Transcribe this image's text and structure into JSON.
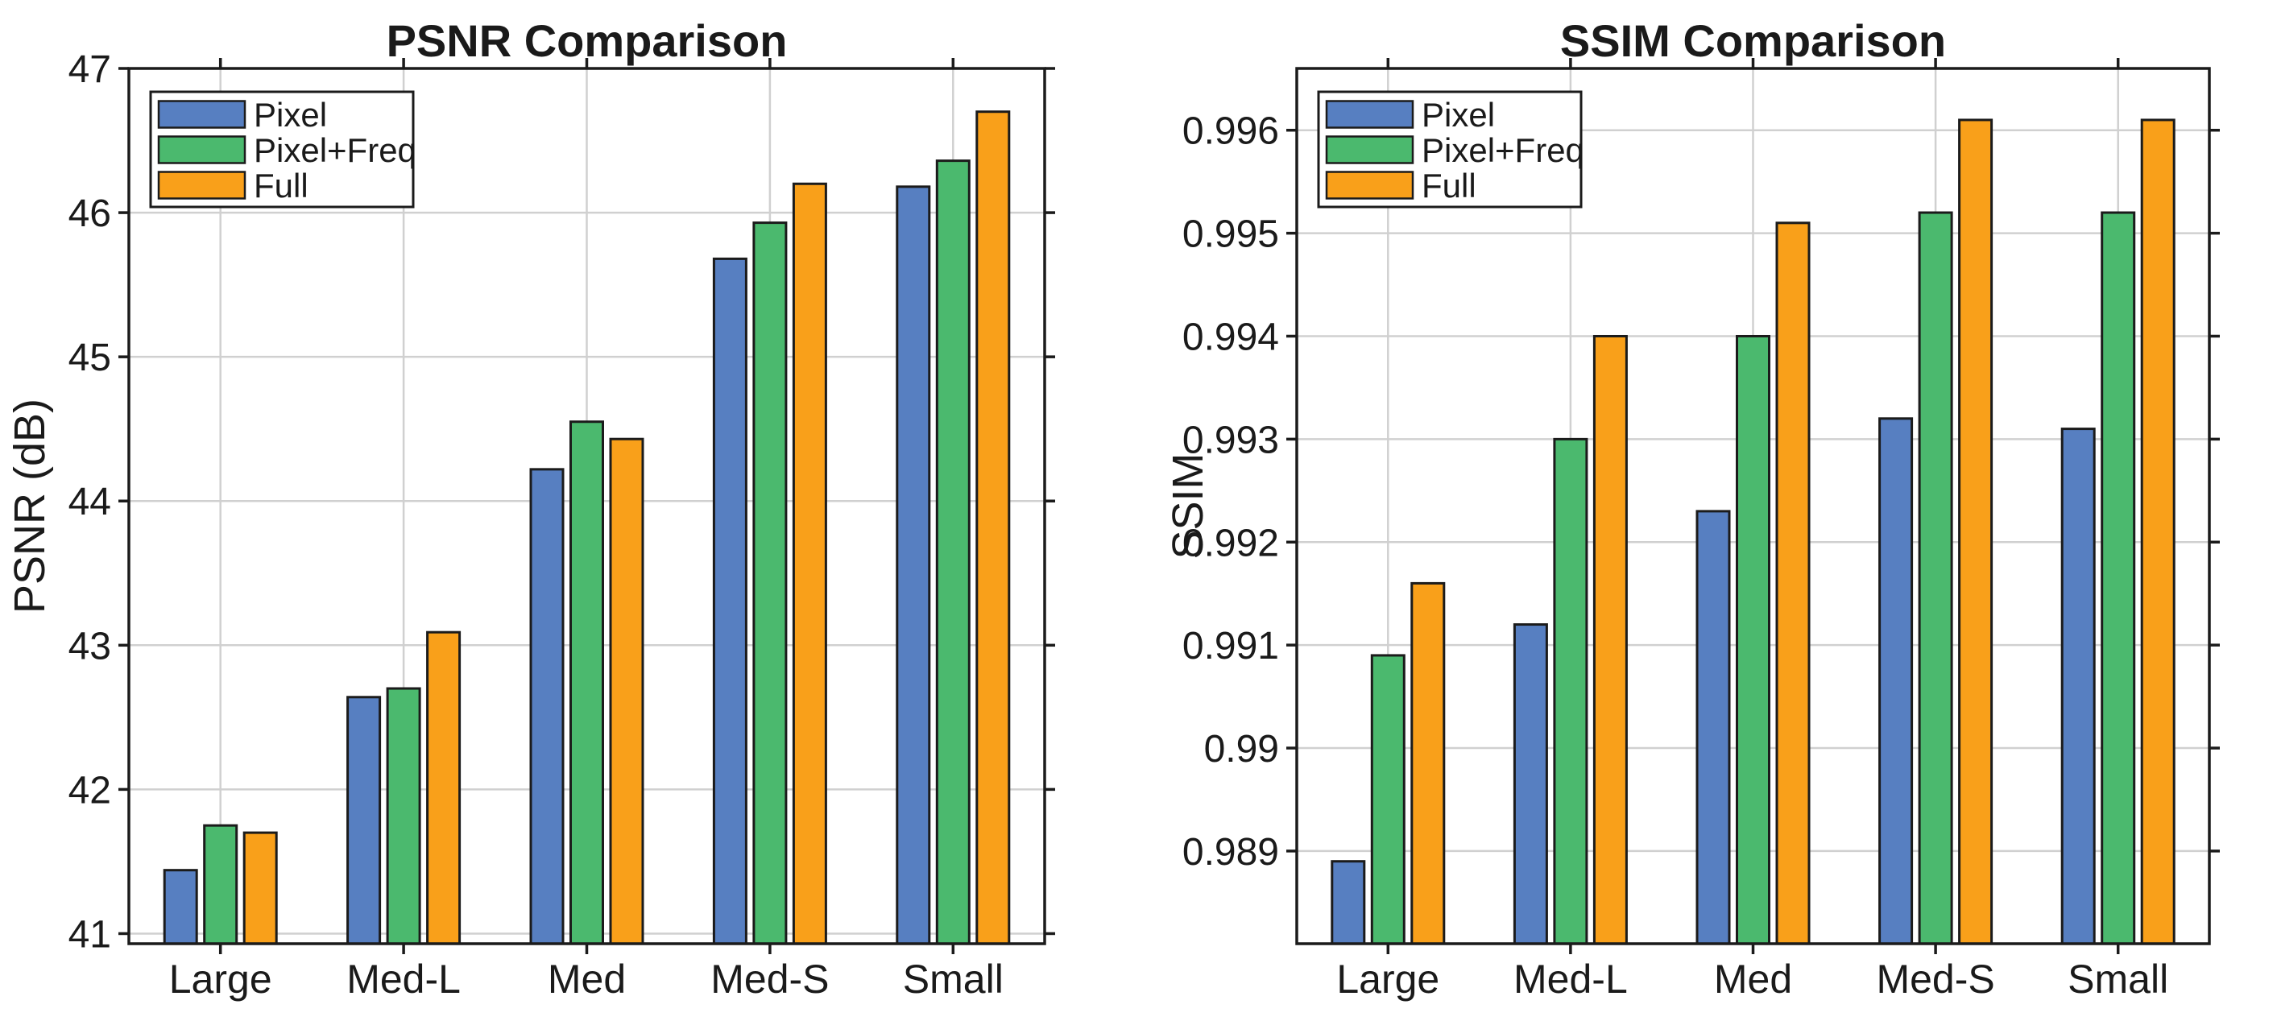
{
  "figure": {
    "background": "#ffffff",
    "grid_color": "#d0d0d0",
    "axis_color": "#1b1b1b",
    "text_color": "#1a1a1a"
  },
  "chart_data": [
    {
      "type": "bar",
      "title": "PSNR Comparison",
      "ylabel": "PSNR (dB)",
      "xlabel": "",
      "categories": [
        "Large",
        "Med-L",
        "Med",
        "Med-S",
        "Small"
      ],
      "series": [
        {
          "name": "Pixel",
          "color": "#577FC1",
          "values": [
            41.44,
            42.64,
            44.22,
            45.68,
            46.18
          ]
        },
        {
          "name": "Pixel+Freq",
          "color": "#4BB96E",
          "values": [
            41.75,
            42.7,
            44.55,
            45.93,
            46.36
          ]
        },
        {
          "name": "Full",
          "color": "#F9A01A",
          "values": [
            41.7,
            43.09,
            44.43,
            46.2,
            46.7
          ]
        }
      ],
      "ylim": [
        40.93,
        47
      ],
      "yticks": [
        {
          "v": 41,
          "label": "41"
        },
        {
          "v": 42,
          "label": "42"
        },
        {
          "v": 43,
          "label": "43"
        },
        {
          "v": 44,
          "label": "44"
        },
        {
          "v": 45,
          "label": "45"
        },
        {
          "v": 46,
          "label": "46"
        },
        {
          "v": 47,
          "label": "47"
        }
      ],
      "grid": true,
      "legend_position": "upper-left",
      "legend_labels": [
        "Pixel",
        "Pixel+Freq",
        "Full"
      ]
    },
    {
      "type": "bar",
      "title": "SSIM Comparison",
      "ylabel": "SSIM",
      "xlabel": "",
      "categories": [
        "Large",
        "Med-L",
        "Med",
        "Med-S",
        "Small"
      ],
      "series": [
        {
          "name": "Pixel",
          "color": "#577FC1",
          "values": [
            0.9889,
            0.9912,
            0.9923,
            0.9932,
            0.9931
          ]
        },
        {
          "name": "Pixel+Freq",
          "color": "#4BB96E",
          "values": [
            0.9909,
            0.993,
            0.994,
            0.9952,
            0.9952
          ]
        },
        {
          "name": "Full",
          "color": "#F9A01A",
          "values": [
            0.9916,
            0.994,
            0.9951,
            0.9961,
            0.9961
          ]
        }
      ],
      "ylim": [
        0.9881,
        0.9966
      ],
      "yticks": [
        {
          "v": 0.989,
          "label": "0.989"
        },
        {
          "v": 0.99,
          "label": "0.99"
        },
        {
          "v": 0.991,
          "label": "0.991"
        },
        {
          "v": 0.992,
          "label": "0.992"
        },
        {
          "v": 0.993,
          "label": "0.993"
        },
        {
          "v": 0.994,
          "label": "0.994"
        },
        {
          "v": 0.995,
          "label": "0.995"
        },
        {
          "v": 0.996,
          "label": "0.996"
        }
      ],
      "grid": true,
      "legend_position": "upper-left",
      "legend_labels": [
        "Pixel",
        "Pixel+Freq",
        "Full"
      ]
    }
  ]
}
